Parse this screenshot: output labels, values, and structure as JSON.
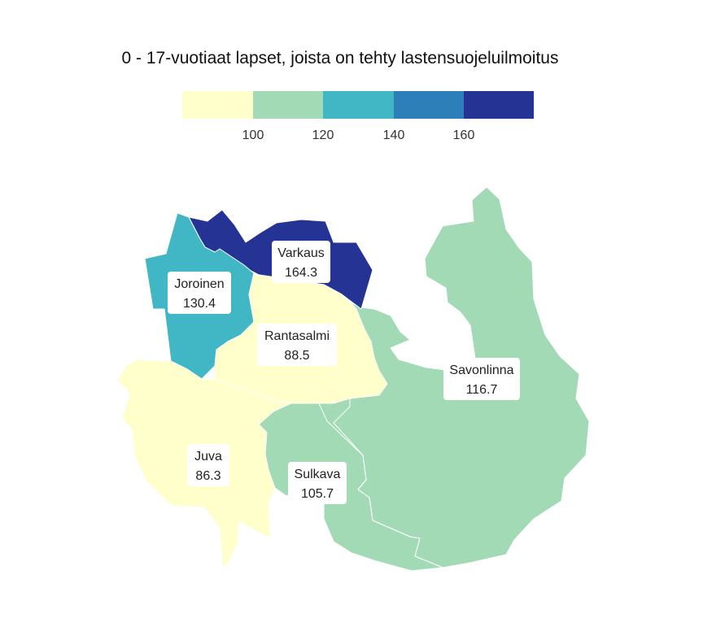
{
  "title": "0 - 17-vuotiaat lapset, joista on tehty lastensuojeluilmoitus",
  "legend": {
    "ticks": [
      "100",
      "120",
      "140",
      "160"
    ],
    "colors": [
      "#ffffcc",
      "#a1dab4",
      "#41b6c4",
      "#2c7fb8",
      "#253494"
    ]
  },
  "regions": [
    {
      "name": "Varkaus",
      "value": "164.3",
      "color": "#253494"
    },
    {
      "name": "Joroinen",
      "value": "130.4",
      "color": "#41b6c4"
    },
    {
      "name": "Rantasalmi",
      "value": "88.5",
      "color": "#ffffcc"
    },
    {
      "name": "Savonlinna",
      "value": "116.7",
      "color": "#a1dab4"
    },
    {
      "name": "Juva",
      "value": "86.3",
      "color": "#ffffcc"
    },
    {
      "name": "Sulkava",
      "value": "105.7",
      "color": "#a1dab4"
    }
  ]
}
